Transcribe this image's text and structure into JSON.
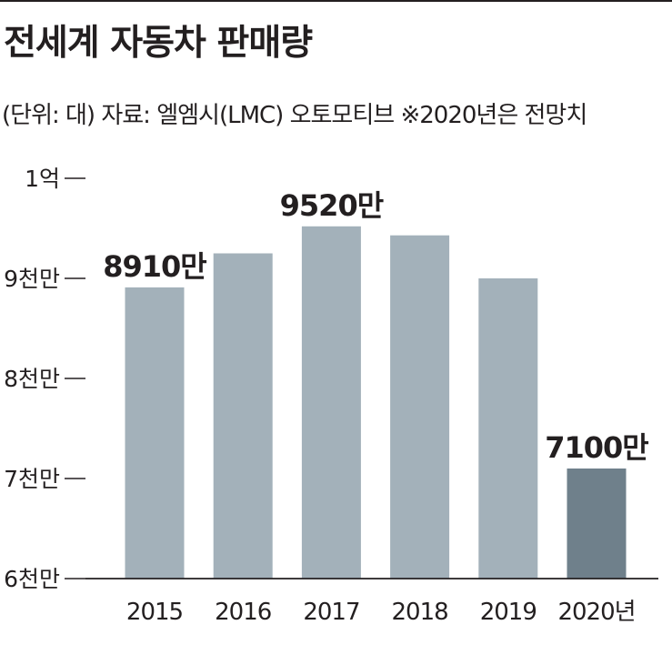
{
  "title": "전세계 자동차 판매량",
  "subtitle": "(단위: 대) 자료: 엘엠시(LMC) 오토모티브 ※2020년은 전망치",
  "chart_data": {
    "type": "bar",
    "categories": [
      "2015",
      "2016",
      "2017",
      "2018",
      "2019",
      "2020년"
    ],
    "values": [
      89100000,
      92500000,
      95200000,
      94300000,
      90000000,
      71000000
    ],
    "data_labels": [
      "8910만",
      "",
      "9520만",
      "",
      "",
      "7100만"
    ],
    "ylim": [
      60000000,
      100000000
    ],
    "yticks": [
      60000000,
      70000000,
      80000000,
      90000000,
      100000000
    ],
    "ytick_labels": [
      "6천만",
      "7천만",
      "8천만",
      "9천만",
      "1억"
    ],
    "grid": false,
    "colors": {
      "bar": "#a3b1ba",
      "highlight_bar": "#6f808b",
      "axis": "#231f20"
    },
    "highlight_index": 5
  }
}
